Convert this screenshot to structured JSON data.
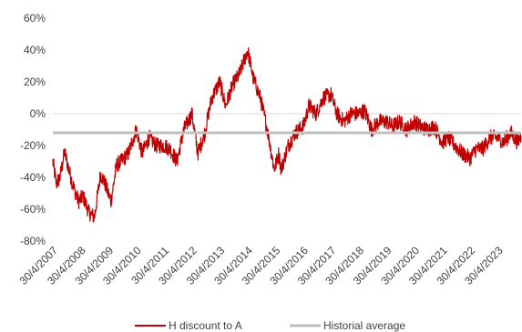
{
  "chart_data": {
    "type": "line",
    "y_axis": {
      "min": -80,
      "max": 60,
      "ticks": [
        60,
        40,
        20,
        0,
        -20,
        -40,
        -60,
        -80
      ],
      "tick_labels": [
        "60%",
        "40%",
        "20%",
        "0%",
        "-20%",
        "-40%",
        "-60%",
        "-80%"
      ]
    },
    "x_axis": {
      "start": "2007-04-30",
      "end": "2024-02-28",
      "tick_dates": [
        "2007-04-30",
        "2008-04-30",
        "2009-04-30",
        "2010-04-30",
        "2011-04-30",
        "2012-04-30",
        "2013-04-30",
        "2014-04-30",
        "2015-04-30",
        "2016-04-30",
        "2017-04-30",
        "2018-04-30",
        "2019-04-30",
        "2020-04-30",
        "2021-04-30",
        "2022-04-30",
        "2023-04-30"
      ],
      "tick_labels": [
        "30/4/2007",
        "30/4/2008",
        "30/4/2009",
        "30/4/2010",
        "30/4/2011",
        "30/4/2012",
        "30/4/2013",
        "30/4/2014",
        "30/4/2015",
        "30/4/2016",
        "30/4/2017",
        "30/4/2018",
        "30/4/2019",
        "30/4/2020",
        "30/4/2021",
        "30/4/2022",
        "30/4/2023"
      ]
    },
    "grid": {
      "horizontal": false,
      "zero_line": true
    },
    "legend": {
      "position": "bottom"
    },
    "series": [
      {
        "name": "H discount to A",
        "color": "#C00000",
        "x": [
          "2007-04-30",
          "2007-06-15",
          "2007-08-01",
          "2007-10-01",
          "2007-12-01",
          "2008-02-01",
          "2008-04-01",
          "2008-06-01",
          "2008-08-15",
          "2008-10-27",
          "2009-01-15",
          "2009-03-01",
          "2009-06-01",
          "2009-08-15",
          "2009-10-15",
          "2010-01-15",
          "2010-04-30",
          "2010-07-15",
          "2010-10-15",
          "2011-01-15",
          "2011-04-30",
          "2011-07-15",
          "2011-10-15",
          "2012-01-15",
          "2012-04-30",
          "2012-07-15",
          "2012-10-15",
          "2013-01-15",
          "2013-04-30",
          "2013-07-15",
          "2013-10-15",
          "2014-01-15",
          "2014-04-30",
          "2014-07-15",
          "2014-10-15",
          "2015-01-15",
          "2015-04-15",
          "2015-06-15",
          "2015-07-15",
          "2015-10-15",
          "2016-01-15",
          "2016-04-30",
          "2016-07-15",
          "2016-10-15",
          "2017-01-15",
          "2017-04-30",
          "2017-07-15",
          "2017-10-15",
          "2018-01-15",
          "2018-04-30",
          "2018-07-15",
          "2018-10-15",
          "2019-01-15",
          "2019-04-30",
          "2019-07-15",
          "2019-10-15",
          "2020-01-15",
          "2020-04-30",
          "2020-07-15",
          "2020-10-15",
          "2021-01-15",
          "2021-04-30",
          "2021-07-15",
          "2021-10-15",
          "2022-01-15",
          "2022-04-30",
          "2022-07-15",
          "2022-10-15",
          "2023-01-15",
          "2023-04-30",
          "2023-07-15",
          "2023-10-15",
          "2024-01-15",
          "2024-02-28"
        ],
        "values": [
          -30,
          -44,
          -40,
          -24,
          -36,
          -47,
          -55,
          -52,
          -62,
          -65,
          -38,
          -42,
          -55,
          -32,
          -30,
          -25,
          -10,
          -25,
          -15,
          -20,
          -20,
          -22,
          -30,
          -10,
          0,
          -25,
          -12,
          10,
          20,
          5,
          18,
          25,
          40,
          22,
          10,
          -10,
          -35,
          -25,
          -35,
          -20,
          -12,
          -8,
          5,
          0,
          10,
          12,
          0,
          -5,
          0,
          0,
          2,
          -10,
          -5,
          -5,
          -8,
          -5,
          -10,
          -5,
          -8,
          -10,
          -8,
          -18,
          -15,
          -20,
          -25,
          -28,
          -22,
          -22,
          -15,
          -15,
          -18,
          -12,
          -18,
          -14
        ],
        "jitter": 5
      },
      {
        "name": "Historial average",
        "color": "#BFBFBF",
        "x": [
          "2007-04-30",
          "2024-02-28"
        ],
        "values": [
          -12,
          -12
        ]
      }
    ]
  }
}
